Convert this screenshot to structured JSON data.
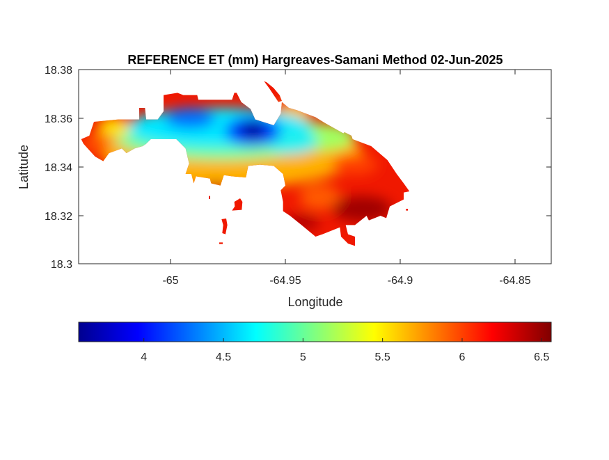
{
  "chart_data": {
    "type": "heatmap",
    "subtype": "filled-contour",
    "title": "REFERENCE ET (mm) Hargreaves-Samani Method  02-Jun-2025",
    "xlabel": "Longitude",
    "ylabel": "Latitude",
    "xlim": [
      -65.04,
      -64.834
    ],
    "ylim": [
      18.3,
      18.38
    ],
    "xticks": [
      -65,
      -64.95,
      -64.9,
      -64.85
    ],
    "xtick_labels": [
      "-65",
      "-64.95",
      "-64.9",
      "-64.85"
    ],
    "yticks": [
      18.3,
      18.32,
      18.34,
      18.36,
      18.38
    ],
    "ytick_labels": [
      "18.3",
      "18.32",
      "18.34",
      "18.36",
      "18.38"
    ],
    "grid": false,
    "colormap": "jet",
    "colorbar": {
      "orientation": "horizontal",
      "placement": "bottom",
      "range": [
        3.59,
        6.56
      ],
      "ticks": [
        4,
        4.5,
        5,
        5.5,
        6,
        6.5
      ],
      "tick_labels": [
        "4",
        "4.5",
        "5",
        "5.5",
        "6",
        "6.5"
      ]
    },
    "approx_field": {
      "min_value": 3.7,
      "min_location": [
        -64.936,
        18.355
      ],
      "max_value": 6.5,
      "max_location": [
        -64.875,
        18.322
      ],
      "west_tip_value": 6.1,
      "central_north_value": 4.2,
      "southeast_value": 6.3
    }
  }
}
